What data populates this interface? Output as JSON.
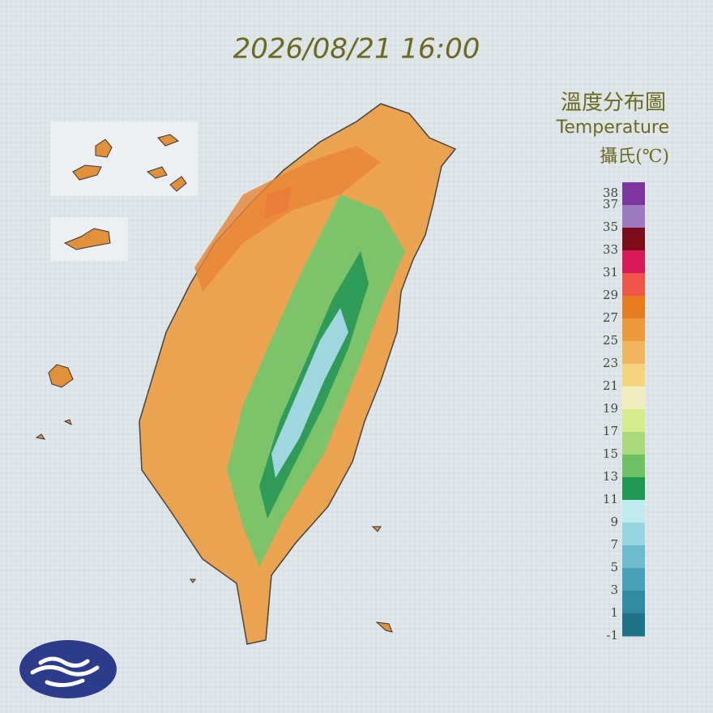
{
  "header": {
    "title": "2026/08/21 16:00"
  },
  "legend": {
    "title": "溫度分布圖",
    "subtitle": "Temperature",
    "unit": "攝氏(℃)",
    "labels": [
      38,
      37,
      35,
      33,
      31,
      29,
      27,
      25,
      23,
      21,
      19,
      17,
      15,
      13,
      11,
      9,
      7,
      5,
      3,
      1,
      -1
    ],
    "colors": [
      "#7a35a0",
      "#a07ac0",
      "#7e0b18",
      "#d81858",
      "#ee5548",
      "#e67c1c",
      "#ee9a3a",
      "#f3b65e",
      "#f5d47e",
      "#f1edbe",
      "#d6ec8c",
      "#a8d97a",
      "#6fc166",
      "#1e9a52",
      "#bfeaf0",
      "#98d6e2",
      "#6cbccd",
      "#48a2b8",
      "#2f8aa2",
      "#1f748a"
    ]
  }
}
